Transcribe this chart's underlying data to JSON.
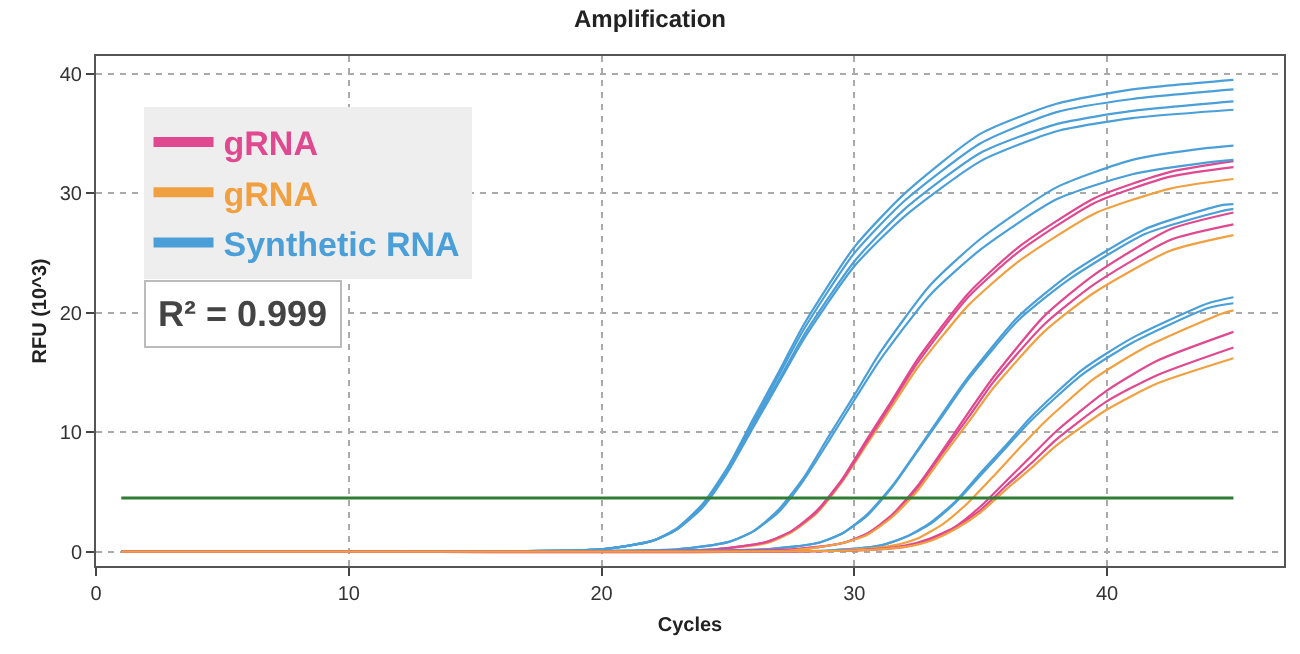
{
  "chart_data": {
    "type": "line",
    "title": "Amplification",
    "xlabel": "Cycles",
    "ylabel": "RFU (10^3)",
    "xlim": [
      0,
      47
    ],
    "ylim": [
      -1.2,
      41.5
    ],
    "xticks": [
      0,
      10,
      20,
      30,
      40
    ],
    "yticks": [
      0,
      10,
      20,
      30,
      40
    ],
    "grid": true,
    "legend": "top left",
    "marker": "none",
    "line_style": "solid",
    "annotations": [
      "R² = 0.999"
    ],
    "ref_lines": [
      {
        "axis": "y",
        "value": 4.5,
        "color": "#2e7d32"
      }
    ],
    "series": [
      {
        "name": "gRNA",
        "color": "#e0488f",
        "x": [
          1,
          10,
          24.5,
          26.5,
          27.5,
          28.5,
          29.5,
          30.5,
          31.5,
          32.5,
          34.5,
          36.5,
          39.5,
          42.5,
          45
        ],
        "values": [
          0,
          0,
          0.2,
          0.8,
          1.7,
          3.4,
          6.0,
          9.4,
          12.7,
          16.1,
          21.6,
          25.5,
          29.6,
          31.8,
          32.7
        ]
      },
      {
        "name": "gRNA",
        "color": "#f0a040",
        "x": [
          1,
          10,
          24.5,
          26.5,
          27.5,
          28.5,
          29.5,
          30.5,
          31.5,
          32.5,
          34.5,
          36.5,
          39.5,
          42.5,
          45
        ],
        "values": [
          0,
          0,
          0.2,
          0.7,
          1.6,
          3.2,
          5.8,
          9.0,
          12.2,
          15.4,
          20.6,
          24.3,
          28.3,
          30.4,
          31.2
        ]
      },
      {
        "name": "Synthetic RNA",
        "color": "#4a9fd8",
        "x": [
          1,
          10,
          20,
          22,
          23,
          24,
          25,
          26,
          27,
          28,
          30,
          32,
          35,
          38,
          41,
          45
        ],
        "values": [
          0,
          0,
          0.2,
          0.9,
          2.0,
          4.0,
          7.1,
          11.1,
          15.0,
          19.0,
          25.5,
          30.0,
          35.0,
          37.5,
          38.7,
          39.5
        ]
      },
      {
        "color": "#4a9fd8",
        "x": [
          1,
          10,
          20,
          22,
          23,
          24,
          25,
          26,
          27,
          28,
          30,
          32,
          35,
          38,
          41,
          45
        ],
        "values": [
          0,
          0,
          0.2,
          0.9,
          1.9,
          3.9,
          7.0,
          10.8,
          14.7,
          18.6,
          25.0,
          29.4,
          34.2,
          36.8,
          37.9,
          38.7
        ]
      },
      {
        "color": "#4a9fd8",
        "x": [
          1,
          10,
          20,
          22,
          23,
          24,
          25,
          26,
          27,
          28,
          30,
          32,
          35,
          38,
          41,
          45
        ],
        "values": [
          0,
          0,
          0.2,
          0.9,
          1.9,
          3.8,
          6.8,
          10.6,
          14.3,
          18.1,
          24.3,
          28.7,
          33.4,
          35.8,
          36.9,
          37.7
        ]
      },
      {
        "color": "#4a9fd8",
        "x": [
          1,
          10,
          20,
          22,
          23,
          24,
          25,
          26,
          27,
          28,
          30,
          32,
          35,
          38,
          41,
          45
        ],
        "values": [
          0,
          0,
          0.2,
          0.9,
          1.9,
          3.7,
          6.7,
          10.4,
          14.1,
          17.8,
          23.9,
          28.1,
          32.7,
          35.2,
          36.3,
          37.0
        ]
      },
      {
        "color": "#4a9fd8",
        "x": [
          1,
          10,
          23,
          25,
          26,
          27,
          28,
          29,
          30,
          31,
          33,
          35,
          38,
          41,
          44,
          45
        ],
        "values": [
          0,
          0,
          0.2,
          0.8,
          1.7,
          3.5,
          6.2,
          9.7,
          13.1,
          16.6,
          22.3,
          26.2,
          30.5,
          32.8,
          33.8,
          34.0
        ]
      },
      {
        "color": "#4a9fd8",
        "x": [
          1,
          10,
          23,
          25,
          26,
          27,
          28,
          29,
          30,
          31,
          33,
          35,
          38,
          41,
          44,
          45
        ],
        "values": [
          0,
          0,
          0.2,
          0.8,
          1.7,
          3.3,
          6.0,
          9.3,
          12.7,
          16.0,
          21.5,
          25.3,
          29.5,
          31.6,
          32.6,
          32.8
        ]
      },
      {
        "color": "#e0488f",
        "x": [
          1,
          10,
          24.5,
          26.5,
          27.5,
          28.5,
          29.5,
          30.5,
          31.5,
          32.5,
          34.5,
          36.5,
          39.5,
          42.5,
          45
        ],
        "values": [
          0,
          0,
          0.2,
          0.8,
          1.7,
          3.3,
          5.9,
          9.2,
          12.5,
          15.8,
          21.3,
          25.1,
          29.2,
          31.4,
          32.2
        ]
      },
      {
        "color": "#4a9fd8",
        "x": [
          1,
          10,
          26.5,
          28.5,
          29.5,
          30.5,
          31.5,
          32.5,
          33.5,
          34.5,
          36.5,
          38.5,
          41.5,
          44.5,
          45
        ],
        "values": [
          0,
          0,
          0.2,
          0.7,
          1.5,
          3.1,
          5.5,
          8.5,
          11.6,
          14.6,
          19.7,
          23.2,
          27.0,
          29.0,
          29.1
        ]
      },
      {
        "color": "#4a9fd8",
        "x": [
          1,
          10,
          26.5,
          28.5,
          29.5,
          30.5,
          31.5,
          32.5,
          33.5,
          34.5,
          36.5,
          38.5,
          41.5,
          44.5,
          45
        ],
        "values": [
          0,
          0,
          0.2,
          0.7,
          1.5,
          3.0,
          5.4,
          8.4,
          11.4,
          14.4,
          19.4,
          22.8,
          26.6,
          28.5,
          28.7
        ]
      },
      {
        "color": "#e0488f",
        "x": [
          1,
          10,
          27.5,
          29.5,
          30.5,
          31.5,
          32.5,
          33.5,
          34.5,
          35.5,
          37.5,
          39.5,
          42.5,
          45
        ],
        "values": [
          0,
          0,
          0.2,
          0.7,
          1.5,
          3.1,
          5.5,
          8.5,
          11.6,
          14.6,
          19.7,
          23.2,
          27.0,
          28.4
        ]
      },
      {
        "color": "#e0488f",
        "x": [
          1,
          10,
          27.5,
          29.5,
          30.5,
          31.5,
          32.5,
          33.5,
          34.5,
          35.5,
          37.5,
          39.5,
          42.5,
          45
        ],
        "values": [
          0,
          0,
          0.1,
          0.7,
          1.5,
          3.0,
          5.3,
          8.3,
          11.2,
          14.2,
          19.0,
          22.4,
          26.1,
          27.4
        ]
      },
      {
        "color": "#f0a040",
        "x": [
          1,
          10,
          27.5,
          29.5,
          30.5,
          31.5,
          32.5,
          33.5,
          34.5,
          35.5,
          37.5,
          39.5,
          42.5,
          45
        ],
        "values": [
          0,
          0,
          0.1,
          0.7,
          1.4,
          2.9,
          5.1,
          8.0,
          10.8,
          13.7,
          18.4,
          21.7,
          25.2,
          26.5
        ]
      },
      {
        "color": "#4a9fd8",
        "x": [
          1,
          10,
          29,
          31,
          32,
          33,
          34,
          35,
          36,
          37,
          39,
          41,
          44,
          45
        ],
        "values": [
          0,
          0,
          0.1,
          0.5,
          1.2,
          2.4,
          4.2,
          6.6,
          8.9,
          11.3,
          15.2,
          17.9,
          20.8,
          21.3
        ]
      },
      {
        "color": "#4a9fd8",
        "x": [
          1,
          10,
          29,
          31,
          32,
          33,
          34,
          35,
          36,
          37,
          39,
          41,
          44,
          45
        ],
        "values": [
          0,
          0,
          0.1,
          0.5,
          1.2,
          2.3,
          4.1,
          6.4,
          8.7,
          11.0,
          14.8,
          17.5,
          20.4,
          20.8
        ]
      },
      {
        "color": "#f0a040",
        "x": [
          1,
          10,
          29.5,
          31.5,
          32.5,
          33.5,
          34.5,
          35.5,
          36.5,
          37.5,
          39.5,
          41.5,
          44.5,
          45
        ],
        "values": [
          0,
          0,
          0.1,
          0.5,
          1.1,
          2.3,
          4.1,
          6.3,
          8.6,
          10.8,
          14.5,
          17.1,
          19.9,
          20.2
        ]
      },
      {
        "color": "#e0488f",
        "x": [
          1,
          10,
          30,
          32,
          33,
          34,
          35,
          36,
          37,
          38,
          40,
          42,
          45
        ],
        "values": [
          0,
          0,
          0.1,
          0.5,
          1.1,
          2.1,
          3.8,
          5.9,
          8.0,
          10.1,
          13.5,
          16.0,
          18.4
        ]
      },
      {
        "color": "#e0488f",
        "x": [
          1,
          10,
          30,
          32,
          33,
          34,
          35,
          36,
          37,
          38,
          40,
          42,
          45
        ],
        "values": [
          0,
          0,
          0.1,
          0.4,
          1.0,
          2.0,
          3.5,
          5.5,
          7.4,
          9.4,
          12.6,
          14.8,
          17.1
        ]
      },
      {
        "color": "#f0a040",
        "x": [
          1,
          10,
          30,
          32,
          33,
          34,
          35,
          36,
          37,
          38,
          40,
          42,
          45
        ],
        "values": [
          0,
          0,
          0.1,
          0.4,
          0.9,
          1.9,
          3.3,
          5.2,
          7.0,
          8.9,
          11.9,
          14.1,
          16.2
        ]
      }
    ]
  }
}
